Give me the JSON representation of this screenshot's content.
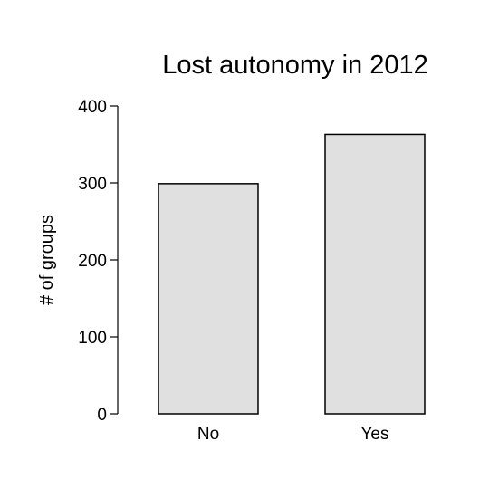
{
  "chart_data": {
    "type": "bar",
    "title": "Lost autonomy in 2012",
    "xlabel": "",
    "ylabel": "# of groups",
    "categories": [
      "No",
      "Yes"
    ],
    "values": [
      299,
      363
    ],
    "ylim": [
      0,
      400
    ],
    "yticks": [
      0,
      100,
      200,
      300,
      400
    ],
    "grid": false,
    "bar_color": "#e0e0e0",
    "outline_color": "#000000"
  }
}
